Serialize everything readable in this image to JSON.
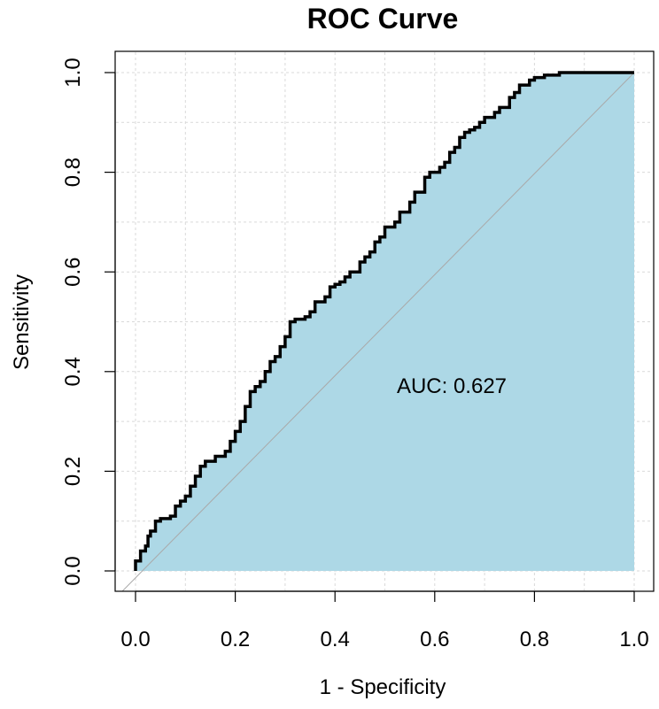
{
  "chart_data": {
    "type": "line",
    "title": "ROC Curve",
    "xlabel": "1 - Specificity",
    "ylabel": "Sensitivity",
    "xlim": [
      0.0,
      1.0
    ],
    "ylim": [
      0.0,
      1.0
    ],
    "grid": true,
    "x_ticks": [
      "0.0",
      "0.2",
      "0.4",
      "0.6",
      "0.8",
      "1.0"
    ],
    "y_ticks": [
      "0.0",
      "0.2",
      "0.4",
      "0.6",
      "0.8",
      "1.0"
    ],
    "annotation": "AUC: 0.627",
    "colors": {
      "fill": "#add8e6",
      "curve": "#000000",
      "diagonal": "#a9a9a9",
      "grid": "#d9d9d9"
    },
    "series": [
      {
        "x": [
          0.0,
          0.0,
          0.01,
          0.02,
          0.025,
          0.03,
          0.04,
          0.05,
          0.07,
          0.08,
          0.09,
          0.1,
          0.11,
          0.12,
          0.13,
          0.14,
          0.16,
          0.18,
          0.19,
          0.2,
          0.21,
          0.22,
          0.23,
          0.24,
          0.25,
          0.26,
          0.27,
          0.28,
          0.29,
          0.3,
          0.31,
          0.32,
          0.34,
          0.35,
          0.36,
          0.38,
          0.39,
          0.4,
          0.41,
          0.42,
          0.43,
          0.45,
          0.46,
          0.47,
          0.48,
          0.49,
          0.5,
          0.52,
          0.53,
          0.55,
          0.56,
          0.58,
          0.59,
          0.6,
          0.61,
          0.62,
          0.63,
          0.64,
          0.65,
          0.66,
          0.67,
          0.68,
          0.69,
          0.7,
          0.72,
          0.73,
          0.75,
          0.76,
          0.77,
          0.79,
          0.8,
          0.82,
          0.85,
          0.87,
          1.0
        ],
        "y": [
          0.0,
          0.02,
          0.04,
          0.05,
          0.07,
          0.08,
          0.1,
          0.105,
          0.11,
          0.13,
          0.14,
          0.15,
          0.17,
          0.19,
          0.21,
          0.22,
          0.23,
          0.24,
          0.26,
          0.28,
          0.3,
          0.33,
          0.36,
          0.37,
          0.38,
          0.4,
          0.42,
          0.43,
          0.45,
          0.47,
          0.5,
          0.505,
          0.51,
          0.52,
          0.54,
          0.55,
          0.57,
          0.575,
          0.58,
          0.59,
          0.6,
          0.62,
          0.63,
          0.64,
          0.66,
          0.67,
          0.69,
          0.7,
          0.72,
          0.74,
          0.76,
          0.79,
          0.8,
          0.8,
          0.81,
          0.82,
          0.84,
          0.85,
          0.87,
          0.88,
          0.885,
          0.89,
          0.9,
          0.91,
          0.92,
          0.93,
          0.95,
          0.96,
          0.975,
          0.985,
          0.99,
          0.995,
          1.0,
          1.0,
          1.0
        ]
      }
    ]
  }
}
